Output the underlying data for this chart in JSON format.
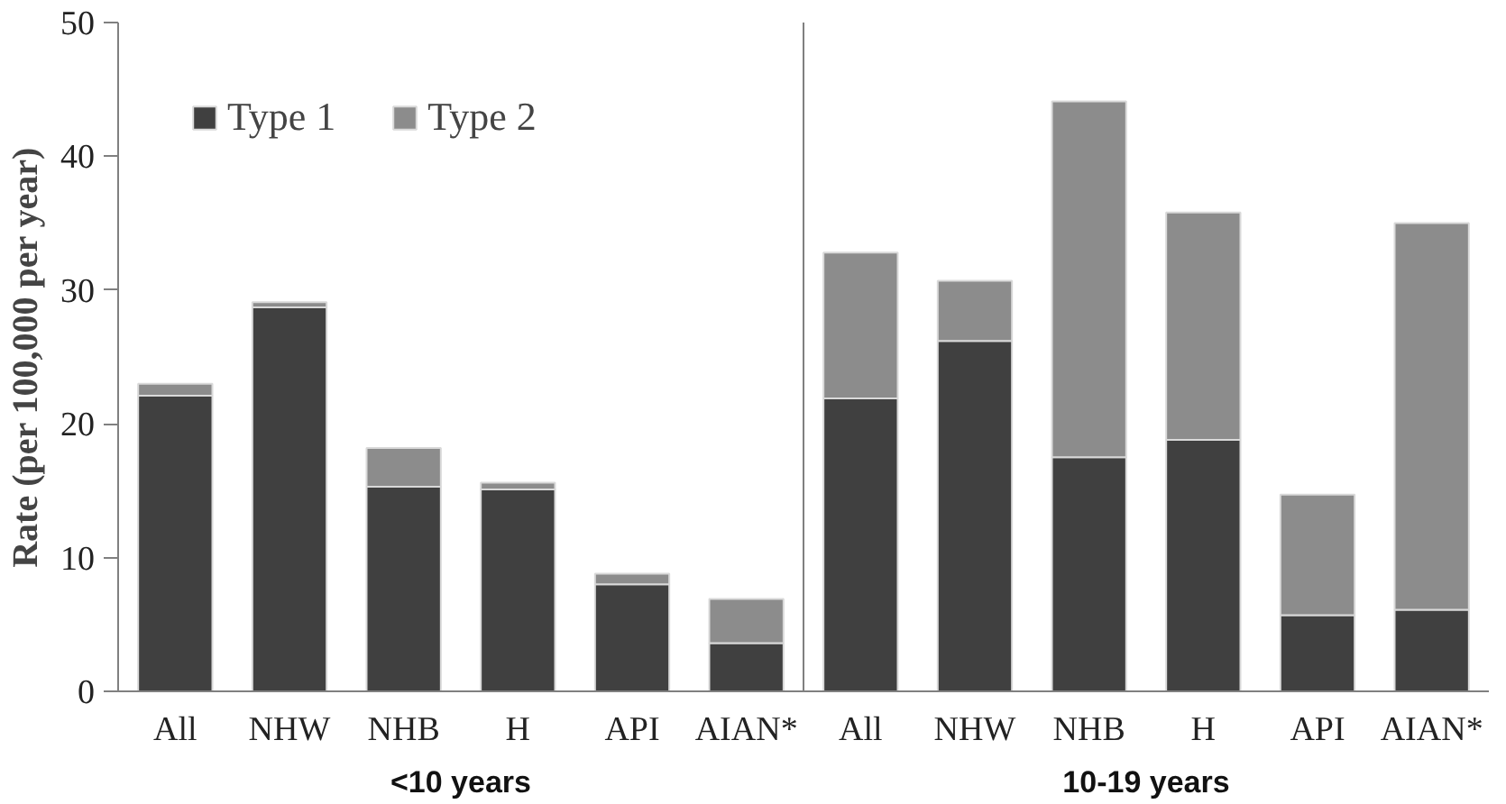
{
  "chart_data": {
    "type": "bar",
    "stacked": true,
    "categories": [
      "All",
      "NHW",
      "NHB",
      "H",
      "API",
      "AIAN*",
      "All",
      "NHW",
      "NHB",
      "H",
      "API",
      "AIAN*"
    ],
    "ylabel": "Rate (per 100,000 per year)",
    "series": [
      {
        "name": "Type 1",
        "color": "#404040",
        "values": [
          22.1,
          28.7,
          15.3,
          15.1,
          8.0,
          3.6,
          21.9,
          26.2,
          17.5,
          18.8,
          5.7,
          6.1
        ]
      },
      {
        "name": "Type 2",
        "color": "#8c8c8c",
        "values": [
          0.9,
          0.4,
          2.9,
          0.5,
          0.8,
          3.3,
          10.9,
          4.5,
          26.6,
          17.0,
          9.0,
          28.9
        ]
      }
    ],
    "ylim": [
      0,
      50
    ],
    "yticks": [
      0,
      10,
      20,
      30,
      40,
      50
    ],
    "annotations": [
      "<10 years",
      "10-19 years"
    ],
    "grid": false,
    "legend": "top left"
  }
}
